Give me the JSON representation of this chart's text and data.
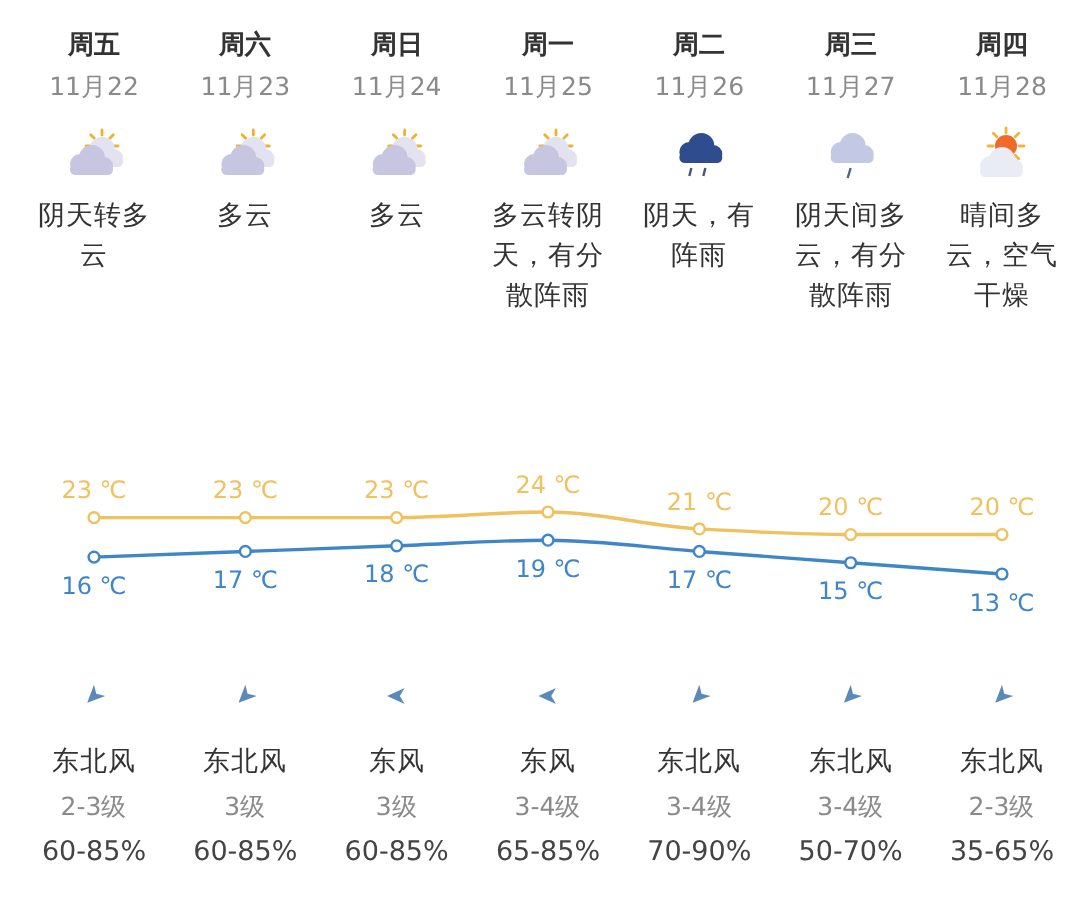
{
  "chart_data": {
    "type": "line",
    "categories": [
      "周五\n11月22",
      "周六\n11月23",
      "周日\n11月24",
      "周一\n11月25",
      "周二\n11月26",
      "周三\n11月27",
      "周四\n11月28"
    ],
    "series": [
      {
        "color": "#efc15f",
        "values": [
          23,
          23,
          23,
          24,
          21,
          20,
          20
        ],
        "value_labels": [
          "23 ℃",
          "23 ℃",
          "23 ℃",
          "24 ℃",
          "21 ℃",
          "20 ℃",
          "20 ℃"
        ]
      },
      {
        "color": "#3f86c8",
        "values": [
          16,
          17,
          18,
          19,
          17,
          15,
          13
        ],
        "value_labels": [
          "16 ℃",
          "17 ℃",
          "18 ℃",
          "19 ℃",
          "17 ℃",
          "15 ℃",
          "13 ℃"
        ]
      }
    ],
    "marker": "circle",
    "line_style": "solid",
    "annotations": [
      "阴天转多云",
      "多云",
      "多云",
      "多云转阴天，有分散阵雨",
      "阴天，有阵雨",
      "阴天间多云，有分散阵雨",
      "晴间多云，空气干燥",
      "东北风",
      "东北风",
      "东风",
      "东风",
      "东北风",
      "东北风",
      "东北风",
      "2-3级",
      "3级",
      "3级",
      "3-4级",
      "3-4级",
      "3-4级",
      "2-3级",
      "60-85%",
      "60-85%",
      "60-85%",
      "65-85%",
      "70-90%",
      "50-70%",
      "35-65%"
    ]
  }
}
